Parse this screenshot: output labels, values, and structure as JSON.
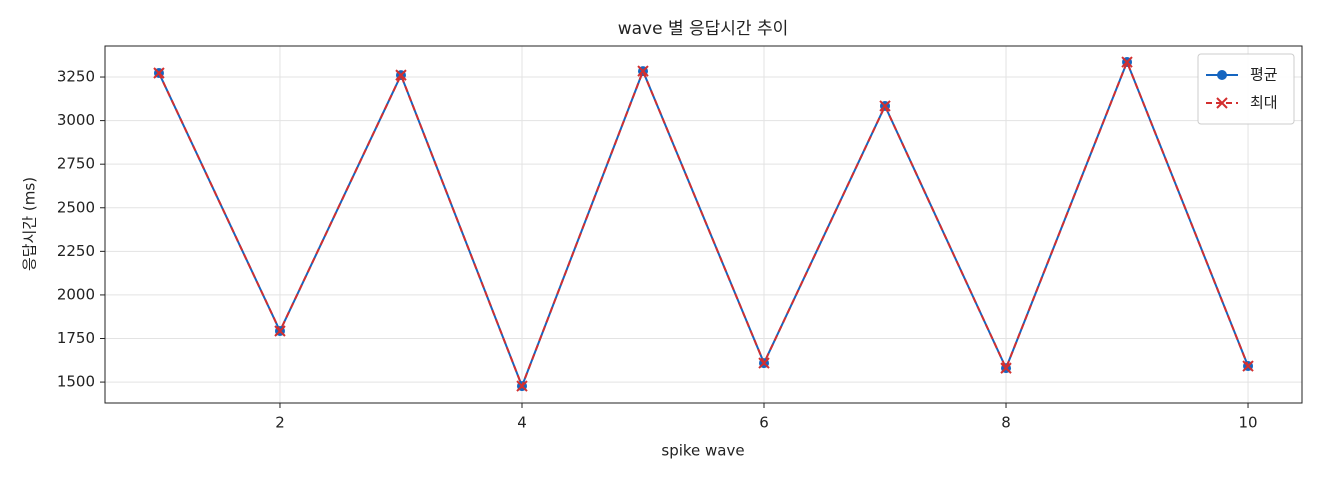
{
  "chart_data": {
    "type": "line",
    "title": "wave 별 응답시간 추이",
    "x_label": "spike wave",
    "y_label": "응답시간 (ms)",
    "x": [
      1,
      2,
      3,
      4,
      5,
      6,
      7,
      8,
      9,
      10
    ],
    "series": [
      {
        "name": "평균",
        "color": "#1565c0",
        "marker": "o",
        "linestyle": "solid",
        "values": [
          3273,
          1793,
          3261,
          1477,
          3284,
          1609,
          3084,
          1580,
          3336,
          1592
        ]
      },
      {
        "name": "최대",
        "color": "#d32f2f",
        "marker": "x",
        "linestyle": "dashed",
        "values": [
          3273,
          1793,
          3261,
          1477,
          3284,
          1609,
          3084,
          1580,
          3336,
          1592
        ]
      }
    ],
    "xlim": [
      0.554,
      10.446
    ],
    "xticks": [
      2,
      4,
      6,
      8,
      10
    ],
    "ylim": [
      1380,
      3428
    ],
    "yticks": [
      1500,
      1750,
      2000,
      2250,
      2500,
      2750,
      3000,
      3250
    ],
    "grid": true,
    "legend": "upper right"
  }
}
